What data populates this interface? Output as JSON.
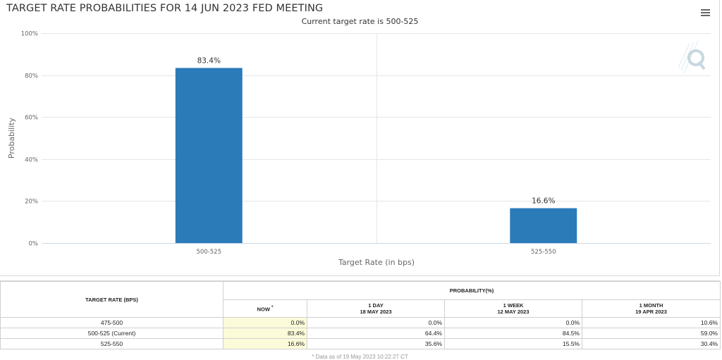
{
  "chart_data": {
    "type": "bar",
    "title": "TARGET RATE PROBABILITIES FOR 14 JUN 2023 FED MEETING",
    "subtitle": "Current target rate is 500-525",
    "categories": [
      "500-525",
      "525-550"
    ],
    "values": [
      83.4,
      16.6
    ],
    "data_labels": [
      "83.4%",
      "16.6%"
    ],
    "xlabel": "Target Rate (in bps)",
    "ylabel": "Probability",
    "ylim": [
      0,
      100
    ],
    "yticks": [
      "0%",
      "20%",
      "40%",
      "60%",
      "80%",
      "100%"
    ],
    "grid": true,
    "bar_color": "#2b7bb9"
  },
  "table": {
    "rate_header": "TARGET RATE (BPS)",
    "prob_header": "PROBABILITY(%)",
    "now_label": "NOW",
    "now_mark": "*",
    "col_1day": "1 DAY",
    "col_1day_date": "18 MAY 2023",
    "col_1week": "1 WEEK",
    "col_1week_date": "12 MAY 2023",
    "col_1month": "1 MONTH",
    "col_1month_date": "19 APR 2023",
    "rows": [
      {
        "rate": "475-500",
        "now": "0.0%",
        "day": "0.0%",
        "week": "0.0%",
        "month": "10.6%"
      },
      {
        "rate": "500-525 (Current)",
        "now": "83.4%",
        "day": "64.4%",
        "week": "84.5%",
        "month": "59.0%"
      },
      {
        "rate": "525-550",
        "now": "16.6%",
        "day": "35.6%",
        "week": "15.5%",
        "month": "30.4%"
      }
    ],
    "note": "* Data as of 19 May 2023 10:22:27 CT"
  },
  "colors": {
    "now_highlight": "#fbfbd9",
    "grid": "#e6e6e6"
  },
  "icons": {
    "menu": "hamburger-menu-icon",
    "logo": "q-logo-icon"
  }
}
